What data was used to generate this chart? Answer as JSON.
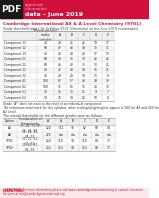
{
  "title_line1": "Cambridge International AS & A Level Chemistry (9701)",
  "subtitle": "Grade threshold tables for Syllabus 9701 (Chemistry) on the June 2019 examination.",
  "header_pink": "data – June 2019",
  "header_subtext1": "approved",
  "header_subtext2": "information",
  "header_bg": "#d0103a",
  "pdf_label": "PDF",
  "pdf_bg": "#1a1a1a",
  "footer_bg": "#fce8e8",
  "footer_color": "#cc1133",
  "footer_line1": "LEARN MORE: For more information please visit www.cambridgeinternational.org or contact Customer",
  "footer_line2": "Services at info@cambridgeinternational.org",
  "body_bg": "#ffffff",
  "table_header": [
    "",
    "Maximum total\nmarks\navailable",
    "A",
    "B",
    "C",
    "D",
    "E"
  ],
  "components": [
    [
      "Component 11",
      "40",
      "28",
      "25",
      "22",
      "19",
      "17"
    ],
    [
      "Component 12",
      "60",
      "47",
      "43",
      "39",
      "35",
      "31"
    ],
    [
      "Component 13",
      "40",
      "28",
      "24",
      "20",
      "17",
      "13"
    ],
    [
      "Component 21",
      "60",
      "40",
      "35",
      "30",
      "26",
      "22"
    ],
    [
      "Component 22",
      "60",
      "46",
      "40",
      "35",
      "30",
      "25"
    ],
    [
      "Component 31",
      "40",
      "27",
      "23",
      "19",
      "15",
      "11"
    ],
    [
      "Component 32",
      "40",
      "29",
      "24",
      "18",
      "13",
      "8"
    ],
    [
      "Component 41",
      "100",
      "67",
      "57",
      "48",
      "39",
      "30"
    ],
    [
      "Component 42",
      "100",
      "71",
      "61",
      "51",
      "40",
      "30"
    ],
    [
      "Component 51",
      "30",
      "15",
      "13",
      "11",
      "9",
      "7"
    ],
    [
      "Component 52",
      "30",
      "16",
      "14",
      "12",
      "10",
      "8"
    ]
  ],
  "note1": "Grade ‘A*’ does not exist at the level of an individual component.",
  "note2a": "The maximum total mark for this syllabus, after scaling/weighting/etc approx is 200 for AS and 400 for",
  "note2b": "A2 Level.",
  "overall_title": "The overall thresholds for the different grades were as follows:",
  "overall_headers": [
    "Option",
    "Combination of\nComponents",
    "A*",
    "A",
    "B",
    "C",
    "D",
    "E"
  ],
  "overall_rows": [
    [
      "AS",
      "11, 21, 31 OR\n12, 22, 32",
      "120",
      "111",
      "96",
      "82",
      "68",
      "54"
    ],
    [
      "A2",
      "11, 21, 31,\n41, 51",
      "272",
      "n/a",
      "n/a",
      "n/a",
      "n/a",
      "n/a"
    ],
    [
      "9701",
      "11, 21, 31,\n41, 51",
      "260",
      "110",
      "90",
      "110",
      "88",
      "77"
    ],
    [
      "9702",
      "11, 21, 31,\n41, 51",
      "252",
      "110",
      "90",
      "110",
      "88",
      "77"
    ]
  ]
}
